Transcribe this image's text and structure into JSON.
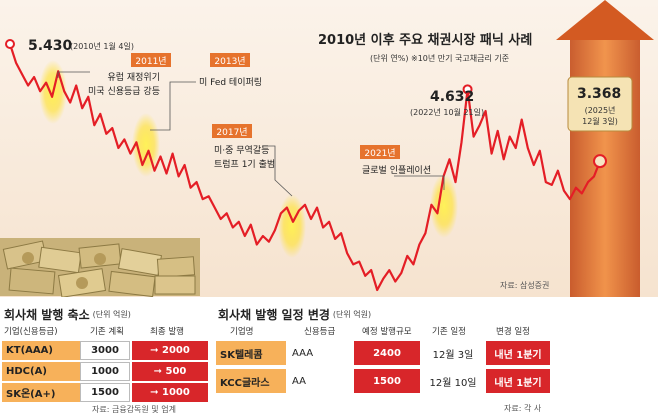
{
  "chart_data": {
    "type": "line",
    "title": "2010년 이후 주요 채권시장 패닉 사례",
    "subtitle": "(단위 연%) ※10년 만기 국고채금리 기준",
    "series": [
      {
        "name": "10년 만기 국고채금리",
        "color": "#e41e26",
        "values": [
          5.43,
          5.1,
          4.9,
          4.7,
          4.85,
          4.6,
          4.75,
          4.5,
          4.95,
          4.6,
          4.4,
          4.7,
          4.3,
          4.5,
          4.0,
          4.2,
          3.85,
          3.95,
          3.6,
          3.75,
          3.5,
          3.7,
          3.3,
          3.55,
          3.2,
          3.45,
          3.15,
          3.5,
          3.1,
          3.3,
          2.9,
          3.0,
          2.7,
          2.75,
          2.55,
          2.35,
          2.45,
          2.2,
          2.3,
          2.05,
          2.25,
          1.9,
          2.05,
          1.95,
          2.15,
          2.45,
          2.55,
          2.3,
          2.5,
          2.6,
          2.35,
          2.55,
          2.2,
          2.3,
          2.0,
          2.1,
          1.75,
          1.55,
          1.6,
          1.35,
          1.45,
          1.1,
          1.3,
          1.45,
          1.25,
          1.4,
          1.7,
          1.55,
          1.9,
          2.1,
          2.6,
          2.45,
          3.1,
          3.4,
          3.0,
          3.7,
          4.632,
          3.8,
          4.0,
          4.25,
          3.5,
          3.9,
          3.4,
          3.8,
          3.6,
          4.1,
          3.6,
          3.3,
          3.55,
          3.0,
          2.95,
          3.2,
          2.85,
          2.7,
          2.9,
          2.8,
          3.0,
          3.1,
          3.368
        ]
      }
    ],
    "annotations": [
      {
        "label": "5.430",
        "date": "(2010년 1월 4일)"
      },
      {
        "label": "4.632",
        "date": "(2022년 10월 21일)"
      },
      {
        "label": "3.368",
        "date": "(2025년 12월 3일)"
      }
    ],
    "events": [
      {
        "year": "2011년",
        "lines": [
          "유럽 재정위기",
          "미국 신용등급 강등"
        ]
      },
      {
        "year": "2013년",
        "lines": [
          "미 Fed 테이퍼링"
        ]
      },
      {
        "year": "2017년",
        "lines": [
          "미·중 무역갈등",
          "트럼프 1기 출범"
        ]
      },
      {
        "year": "2021년",
        "lines": [
          "글로벌 인플레이션"
        ]
      }
    ],
    "source": "자료: 삼성증권"
  },
  "left_table": {
    "title": "회사채 발행 축소",
    "unit": "(단위 억원)",
    "headers": [
      "기업(신용등급)",
      "기존 계획",
      "최종 발행"
    ],
    "rows": [
      {
        "company": "KT(AAA)",
        "plan": "3000",
        "final": "2000"
      },
      {
        "company": "HDC(A)",
        "plan": "1000",
        "final": "500"
      },
      {
        "company": "SK온(A+)",
        "plan": "1500",
        "final": "1000"
      }
    ],
    "source": "자료: 금융감독원 및 업계"
  },
  "right_table": {
    "title": "회사채 발행 일정 변경",
    "unit": "(단위 억원)",
    "headers": [
      "기업명",
      "신용등급",
      "예정 발행규모",
      "기존 일정",
      "변경 일정"
    ],
    "rows": [
      {
        "company": "SK텔레콤",
        "rating": "AAA",
        "size": "2400",
        "old": "12월 3일",
        "new": "내년 1분기"
      },
      {
        "company": "KCC글라스",
        "rating": "AA",
        "size": "1500",
        "old": "12월 10일",
        "new": "내년 1분기"
      }
    ],
    "source": "자료: 각 사"
  },
  "colors": {
    "line": "#e41e26",
    "orange": "#f7b15a",
    "red": "#d8262a",
    "yearbox": "#e6732d"
  }
}
